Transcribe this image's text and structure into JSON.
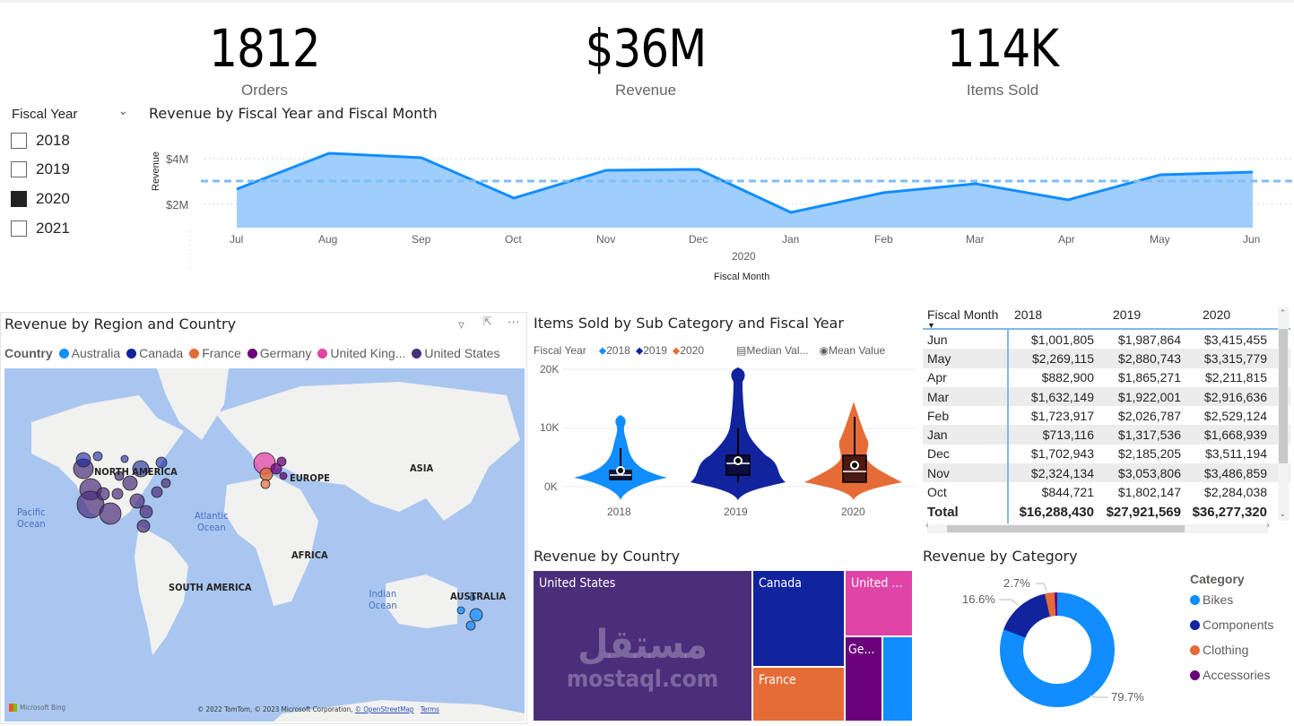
{
  "kpis": [
    {
      "value": "1812",
      "label": "Orders"
    },
    {
      "value": "$36M",
      "label": "Revenue"
    },
    {
      "value": "114K",
      "label": "Items Sold"
    }
  ],
  "slicer": {
    "title": "Fiscal Year",
    "items": [
      {
        "label": "2018",
        "checked": false
      },
      {
        "label": "2019",
        "checked": false
      },
      {
        "label": "2020",
        "checked": true
      },
      {
        "label": "2021",
        "checked": false
      }
    ]
  },
  "line_chart": {
    "title": "Revenue by Fiscal Year and Fiscal Month",
    "ylabel": "Revenue",
    "xlabel": "Fiscal Month",
    "year_label": "2020",
    "yticks": [
      "$4M",
      "$2M"
    ],
    "months": [
      "Jul",
      "Aug",
      "Sep",
      "Oct",
      "Nov",
      "Dec",
      "Jan",
      "Feb",
      "Mar",
      "Apr",
      "May",
      "Jun"
    ]
  },
  "map": {
    "title": "Revenue by Region and Country",
    "legend_title": "Country",
    "legend": [
      {
        "label": "Australia",
        "color": "#118dff"
      },
      {
        "label": "Canada",
        "color": "#12239e"
      },
      {
        "label": "France",
        "color": "#e66c37"
      },
      {
        "label": "Germany",
        "color": "#6b007b"
      },
      {
        "label": "United King...",
        "color": "#e044a7"
      },
      {
        "label": "United States",
        "color": "#4a2e7a"
      }
    ],
    "labels": {
      "north_america": "NORTH AMERICA",
      "europe": "EUROPE",
      "asia": "ASIA",
      "africa": "AFRICA",
      "south_america": "SOUTH AMERICA",
      "australia": "AUSTRALIA",
      "pacific": "Pacific",
      "pacific2": "Ocean",
      "atlantic": "Atlantic",
      "atlantic2": "Ocean",
      "indian": "Indian",
      "indian2": "Ocean"
    },
    "brand": "Microsoft Bing",
    "attribution": "© 2022 TomTom, © 2023 Microsoft Corporation,",
    "osm_link": "© OpenStreetMap",
    "terms_link": "Terms"
  },
  "violin": {
    "title": "Items Sold by Sub Category and Fiscal Year",
    "legend_title": "Fiscal Year",
    "legend": [
      {
        "label": "2018",
        "color": "#118dff"
      },
      {
        "label": "2019",
        "color": "#12239e"
      },
      {
        "label": "2020",
        "color": "#e66c37"
      }
    ],
    "median_label": "Median Val...",
    "mean_label": "Mean Value",
    "yticks": [
      "20K",
      "10K",
      "0K"
    ],
    "categories": [
      "2018",
      "2019",
      "2020"
    ]
  },
  "table": {
    "headers": [
      "Fiscal Month",
      "2018",
      "2019",
      "2020"
    ],
    "rows": [
      [
        "Jun",
        "$1,001,805",
        "$1,987,864",
        "$3,415,455"
      ],
      [
        "May",
        "$2,269,115",
        "$2,880,743",
        "$3,315,779"
      ],
      [
        "Apr",
        "$882,900",
        "$1,865,271",
        "$2,211,815"
      ],
      [
        "Mar",
        "$1,632,149",
        "$1,922,001",
        "$2,916,636"
      ],
      [
        "Feb",
        "$1,723,917",
        "$2,026,787",
        "$2,529,124"
      ],
      [
        "Jan",
        "$713,116",
        "$1,317,536",
        "$1,668,939"
      ],
      [
        "Dec",
        "$1,702,943",
        "$2,185,205",
        "$3,511,194"
      ],
      [
        "Nov",
        "$2,324,134",
        "$3,053,806",
        "$3,486,859"
      ],
      [
        "Oct",
        "$844,721",
        "$1,802,147",
        "$2,284,038"
      ]
    ],
    "total": [
      "Total",
      "$16,288,430",
      "$27,921,569",
      "$36,277,320"
    ]
  },
  "treemap": {
    "title": "Revenue by Country",
    "tiles": [
      {
        "label": "United States",
        "color": "#4a2e7a"
      },
      {
        "label": "Canada",
        "color": "#12239e"
      },
      {
        "label": "United ...",
        "color": "#e044a7"
      },
      {
        "label": "France",
        "color": "#e66c37"
      },
      {
        "label": "Ge...",
        "color": "#6b007b"
      },
      {
        "label": "",
        "color": "#118dff"
      }
    ],
    "watermark_ar": "مستقل",
    "watermark_en": "mostaql.com"
  },
  "donut": {
    "title": "Revenue by Category",
    "legend_title": "Category",
    "slices": [
      {
        "label": "Bikes",
        "pct": "79.7%",
        "value": 79.7,
        "color": "#118dff"
      },
      {
        "label": "Components",
        "pct": "16.6%",
        "value": 16.6,
        "color": "#12239e"
      },
      {
        "label": "Clothing",
        "pct": "2.7%",
        "value": 2.7,
        "color": "#e66c37"
      },
      {
        "label": "Accessories",
        "pct": "",
        "value": 1.0,
        "color": "#6b007b"
      }
    ]
  },
  "chart_data": [
    {
      "type": "area",
      "title": "Revenue by Fiscal Year and Fiscal Month",
      "xlabel": "Fiscal Month",
      "ylabel": "Revenue",
      "categories": [
        "Jul",
        "Aug",
        "Sep",
        "Oct",
        "Nov",
        "Dec",
        "Jan",
        "Feb",
        "Mar",
        "Apr",
        "May",
        "Jun"
      ],
      "series": [
        {
          "name": "2020",
          "values": [
            2.65,
            4.2,
            4.05,
            2.28,
            3.49,
            3.51,
            1.67,
            2.53,
            2.92,
            2.21,
            3.32,
            3.42
          ]
        }
      ],
      "average_line": 3.02,
      "units": "$M",
      "yticks": [
        "$2M",
        "$4M"
      ],
      "grid": true
    },
    {
      "type": "violin",
      "title": "Items Sold by Sub Category and Fiscal Year",
      "categories": [
        "2018",
        "2019",
        "2020"
      ],
      "ylim": [
        0,
        20000
      ],
      "yticks": [
        "0K",
        "10K",
        "20K"
      ],
      "median": [
        1800,
        3900,
        2700
      ],
      "mean": [
        2700,
        4600,
        3900
      ],
      "q1": [
        1100,
        1800,
        1000
      ],
      "q3": [
        2600,
        5200,
        5500
      ],
      "max": [
        10800,
        19800,
        14800
      ]
    },
    {
      "type": "pie",
      "title": "Revenue by Category",
      "categories": [
        "Bikes",
        "Components",
        "Clothing",
        "Accessories"
      ],
      "values": [
        79.7,
        16.6,
        2.7,
        1.0
      ]
    },
    {
      "type": "table",
      "title": "Revenue by Fiscal Month and Fiscal Year",
      "columns": [
        "Fiscal Month",
        "2018",
        "2019",
        "2020"
      ],
      "rows": [
        [
          "Jun",
          1001805,
          1987864,
          3415455
        ],
        [
          "May",
          2269115,
          2880743,
          3315779
        ],
        [
          "Apr",
          882900,
          1865271,
          2211815
        ],
        [
          "Mar",
          1632149,
          1922001,
          2916636
        ],
        [
          "Feb",
          1723917,
          2026787,
          2529124
        ],
        [
          "Jan",
          713116,
          1317536,
          1668939
        ],
        [
          "Dec",
          1702943,
          2185205,
          3511194
        ],
        [
          "Nov",
          2324134,
          3053806,
          3486859
        ],
        [
          "Oct",
          844721,
          1802147,
          2284038
        ]
      ],
      "total": [
        16288430,
        27921569,
        36277320
      ]
    }
  ]
}
